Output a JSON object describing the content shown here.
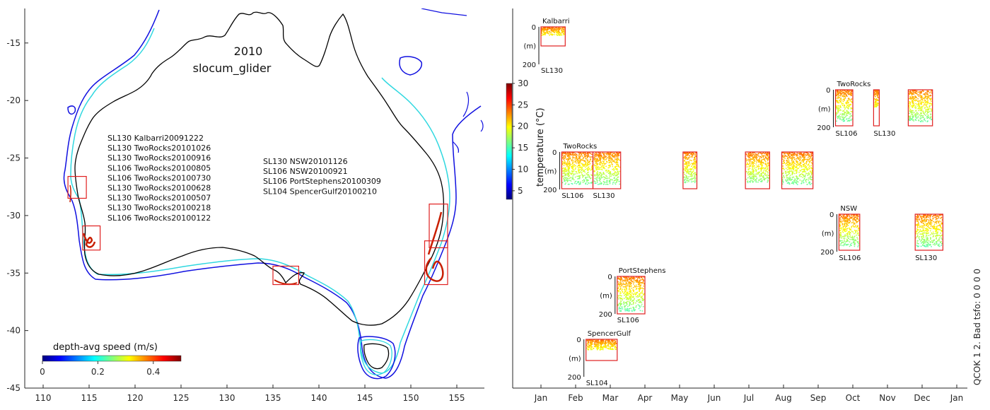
{
  "chart_data": [
    {
      "type": "map",
      "title": "2010",
      "subtitle": "slocum_glider",
      "xlim": [
        108,
        158
      ],
      "ylim": [
        -45,
        -12
      ],
      "xticks": [
        110,
        115,
        120,
        125,
        130,
        135,
        140,
        145,
        150,
        155
      ],
      "yticks": [
        -15,
        -20,
        -25,
        -30,
        -35,
        -40,
        -45
      ],
      "colorbar": {
        "label": "depth-avg speed (m/s)",
        "ticks": [
          "0",
          "0.2",
          "0.4"
        ],
        "range": [
          0,
          0.5
        ]
      },
      "deployments_west": [
        "SL130 Kalbarri20091222",
        "SL130 TwoRocks20101026",
        "SL130 TwoRocks20100916",
        "SL106 TwoRocks20100805",
        "SL106 TwoRocks20100730",
        "SL130 TwoRocks20100628",
        "SL130 TwoRocks20100507",
        "SL130 TwoRocks20100218",
        "SL106 TwoRocks20100122"
      ],
      "deployments_east": [
        "SL130 NSW20101126",
        "SL106 NSW20100921",
        "SL106 PortStephens20100309",
        "SL104 SpencerGulf20100210"
      ],
      "regions": [
        {
          "name": "Kalbarri",
          "lon": [
            112.7,
            114.7
          ],
          "lat": [
            -28.5,
            -26.6
          ]
        },
        {
          "name": "TwoRocks",
          "lon": [
            114.3,
            116.2
          ],
          "lat": [
            -33.0,
            -30.9
          ]
        },
        {
          "name": "SpencerGulf",
          "lon": [
            135.0,
            137.8
          ],
          "lat": [
            -36.0,
            -34.4
          ]
        },
        {
          "name": "NSW",
          "lon": [
            152.0,
            154.0
          ],
          "lat": [
            -32.8,
            -29.0
          ]
        },
        {
          "name": "PortStephens",
          "lon": [
            151.5,
            154.0
          ],
          "lat": [
            -36.0,
            -32.2
          ]
        }
      ]
    },
    {
      "type": "timeline",
      "xticks": [
        "Jan",
        "Feb",
        "Mar",
        "Apr",
        "May",
        "Jun",
        "Jul",
        "Aug",
        "Sep",
        "Oct",
        "Nov",
        "Dec",
        "Jan"
      ],
      "colorbar": {
        "label": "temperature (°C)",
        "ticks": [
          "5",
          "10",
          "15",
          "20",
          "25",
          "30"
        ],
        "range": [
          3,
          30
        ]
      },
      "depth_labels": {
        "top": "0",
        "mid": "(m)",
        "bottom": "200"
      },
      "rows": [
        {
          "region": "Kalbarri",
          "glider_label": "SL130",
          "panels": [
            {
              "start": 0.0,
              "end": 0.7,
              "fill": 0.45
            }
          ]
        },
        {
          "region": "TwoRocks",
          "glider_label": "SL106",
          "glider_label_2": "SL130",
          "panels": [
            {
              "start": 8.5,
              "end": 9.0,
              "fill": 0.9
            },
            {
              "start": 9.6,
              "end": 9.7,
              "fill": 0.5
            },
            {
              "start": 10.6,
              "end": 11.3,
              "fill": 0.9
            }
          ]
        },
        {
          "region": "TwoRocks",
          "glider_label": "SL106",
          "glider_label_2": "SL130",
          "panels": [
            {
              "start": 0.6,
              "end": 1.5,
              "fill": 0.9
            },
            {
              "start": 1.5,
              "end": 2.3,
              "fill": 0.9
            },
            {
              "start": 4.1,
              "end": 4.5,
              "fill": 0.85
            },
            {
              "start": 5.9,
              "end": 6.6,
              "fill": 0.85
            },
            {
              "start": 6.95,
              "end": 7.85,
              "fill": 0.9
            }
          ]
        },
        {
          "region": "NSW",
          "glider_label": "SL106",
          "glider_label_2": "SL130",
          "panels": [
            {
              "start": 8.6,
              "end": 9.2,
              "fill": 0.92
            },
            {
              "start": 10.8,
              "end": 11.6,
              "fill": 0.92
            }
          ]
        },
        {
          "region": "PortStephens",
          "glider_label": "SL106",
          "panels": [
            {
              "start": 2.2,
              "end": 3.0,
              "fill": 0.95
            }
          ]
        },
        {
          "region": "SpencerGulf",
          "glider_label": "SL104",
          "panels": [
            {
              "start": 1.3,
              "end": 2.2,
              "fill": 0.5
            }
          ]
        }
      ],
      "qc_note": "QCOK 1  2. Bad tsfo: 0  0  0  0"
    }
  ]
}
